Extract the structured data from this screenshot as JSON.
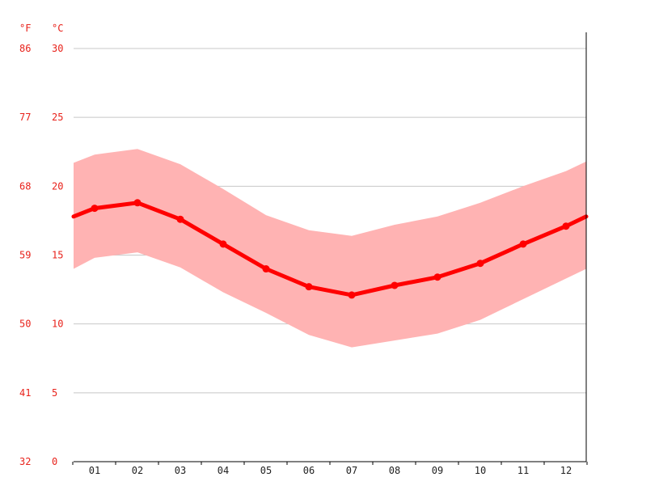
{
  "chart_data": {
    "type": "line",
    "categories": [
      "01",
      "02",
      "03",
      "04",
      "05",
      "06",
      "07",
      "08",
      "09",
      "10",
      "11",
      "12"
    ],
    "y_left_unit": "°F",
    "y_right_unit": "°C",
    "ylim_c": [
      0,
      30
    ],
    "celsius_ticks": [
      "0",
      "5",
      "10",
      "15",
      "20",
      "25",
      "30"
    ],
    "fahrenheit_ticks": [
      "32",
      "41",
      "50",
      "59",
      "68",
      "77",
      "86"
    ],
    "grid": true,
    "series": [
      {
        "role": "average",
        "values": [
          18.4,
          18.8,
          17.6,
          15.8,
          14.0,
          12.7,
          12.1,
          12.8,
          13.4,
          14.4,
          15.8,
          17.1
        ]
      },
      {
        "role": "max",
        "values": [
          22.3,
          22.7,
          21.6,
          19.8,
          17.9,
          16.8,
          16.4,
          17.2,
          17.8,
          18.8,
          20.0,
          21.1
        ]
      },
      {
        "role": "min",
        "values": [
          14.8,
          15.2,
          14.1,
          12.3,
          10.8,
          9.2,
          8.3,
          8.8,
          9.3,
          10.3,
          11.8,
          13.3
        ]
      }
    ],
    "edge_values": {
      "avg_start": 17.8,
      "avg_end": 17.8,
      "max_start": 21.7,
      "max_end": 21.8,
      "min_start": 14.0,
      "min_end": 14.0
    },
    "colors": {
      "line": "#ff0000",
      "band": "#ffb3b3",
      "label": "#e8221b"
    }
  }
}
